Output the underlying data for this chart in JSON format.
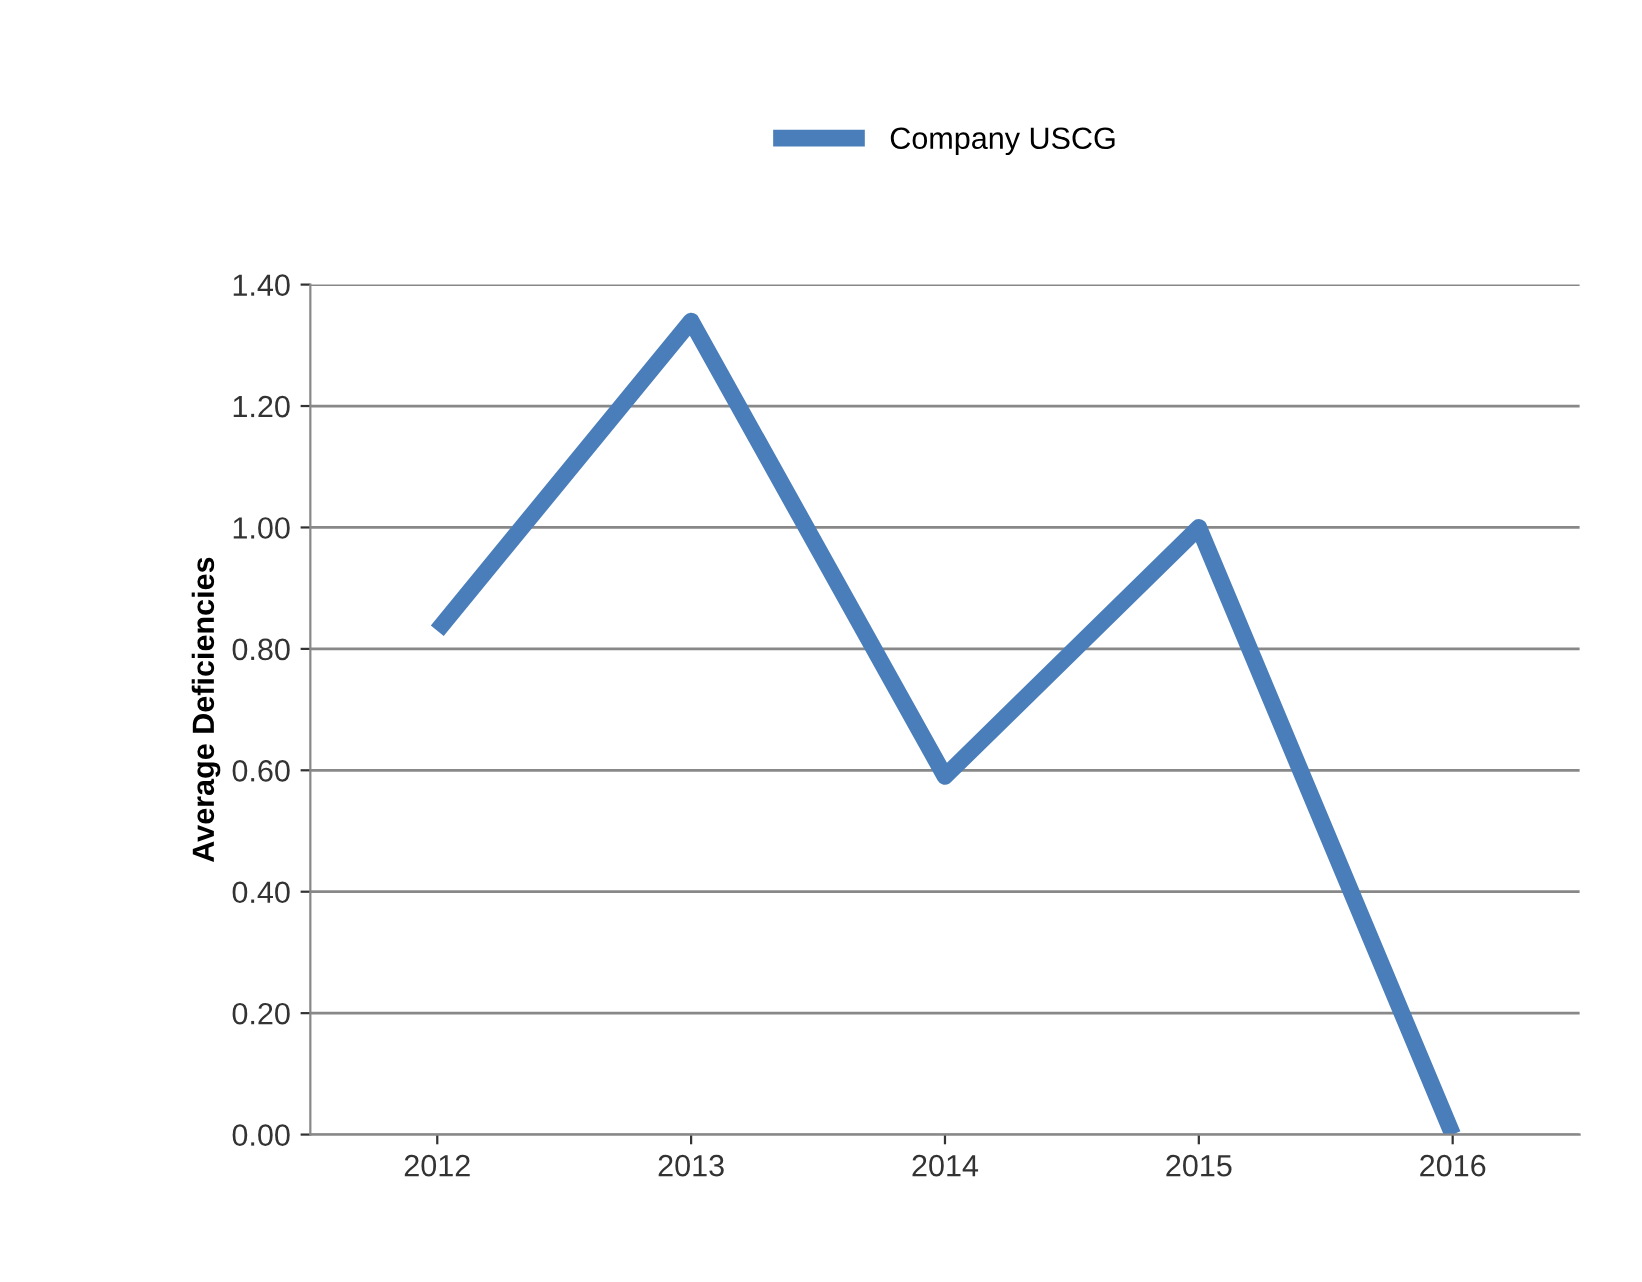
{
  "chart_data": {
    "type": "line",
    "ylabel": "Average Deficiencies",
    "categories": [
      "2012",
      "2013",
      "2014",
      "2015",
      "2016"
    ],
    "series": [
      {
        "name": "Company USCG",
        "color": "#4a7ebb",
        "values": [
          0.83,
          1.34,
          0.59,
          1.0,
          0.0
        ]
      }
    ],
    "ylim": [
      0,
      1.4
    ],
    "yticks": [
      {
        "value": 0,
        "label": "0.00"
      },
      {
        "value": 0.2,
        "label": "0.20"
      },
      {
        "value": 0.4,
        "label": "0.40"
      },
      {
        "value": 0.6,
        "label": "0.60"
      },
      {
        "value": 0.8,
        "label": "0.80"
      },
      {
        "value": 1.0,
        "label": "1.00"
      },
      {
        "value": 1.2,
        "label": "1.20"
      },
      {
        "value": 1.4,
        "label": "1.40"
      }
    ],
    "grid": "y",
    "legend": "top",
    "marker": "none",
    "line_style": "solid"
  }
}
